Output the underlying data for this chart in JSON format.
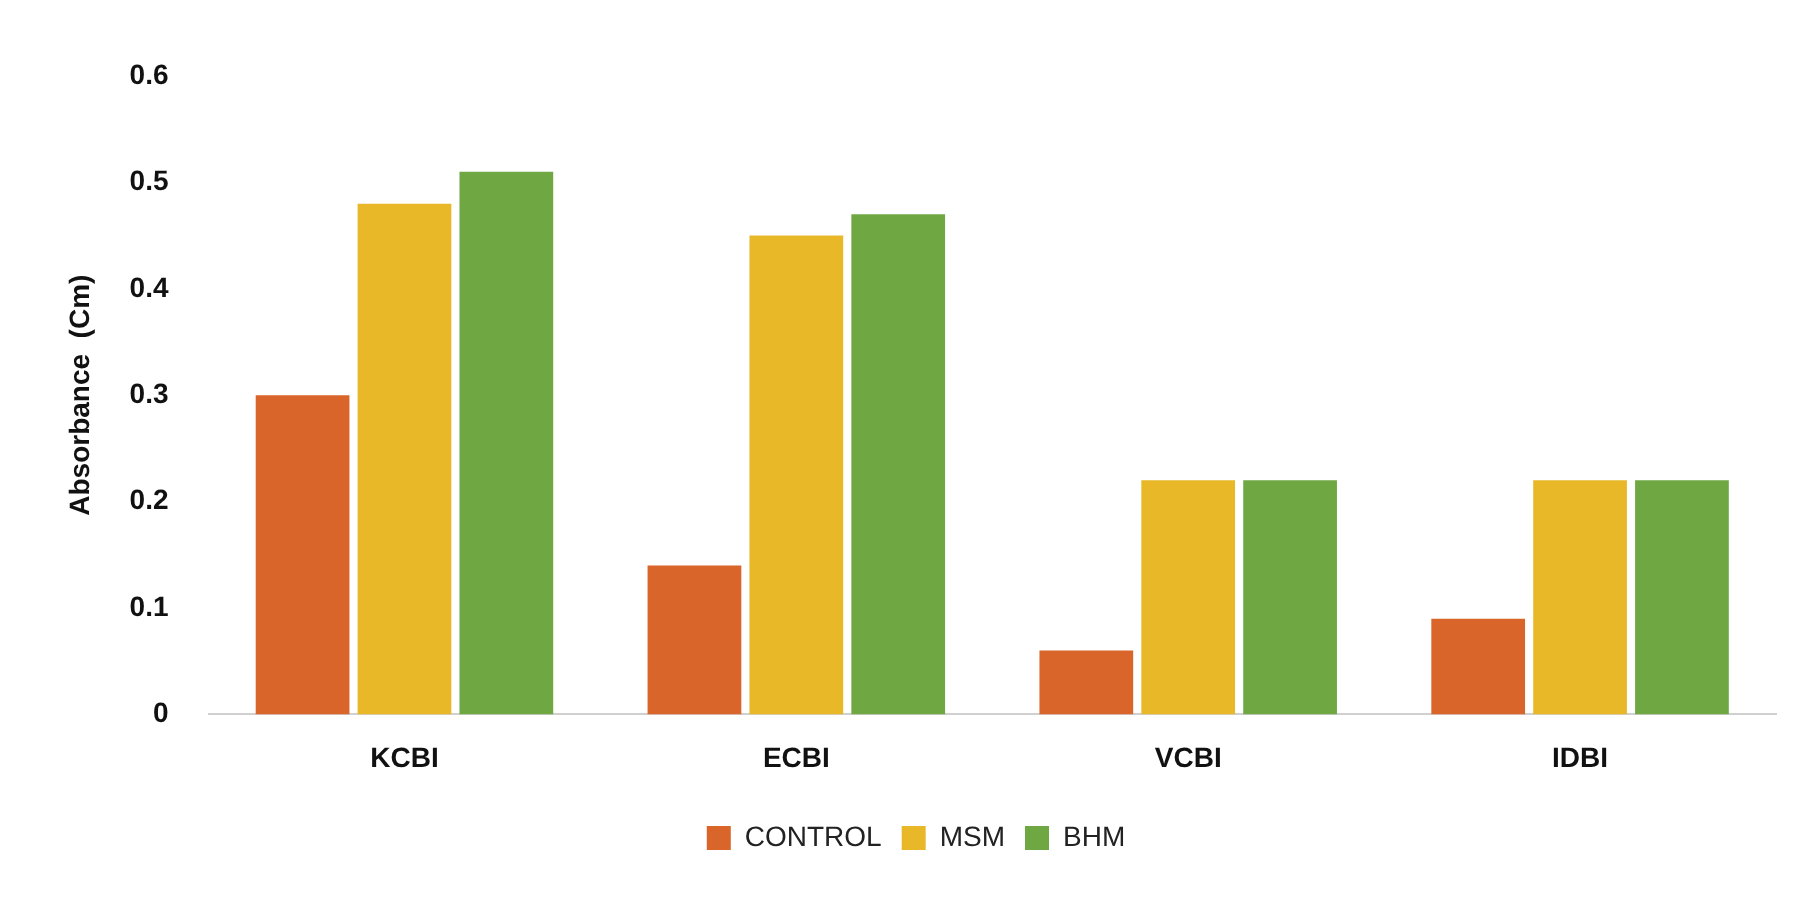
{
  "chart_data": {
    "type": "bar",
    "ylabel": "Absorbance  (Cm)",
    "categories": [
      "KCBI",
      "ECBI",
      "VCBI",
      "IDBI"
    ],
    "series": [
      {
        "name": "CONTROL",
        "color": "#d9652a",
        "values": [
          0.3,
          0.14,
          0.06,
          0.09
        ]
      },
      {
        "name": "MSM",
        "color": "#e8b828",
        "values": [
          0.48,
          0.45,
          0.22,
          0.22
        ]
      },
      {
        "name": "BHM",
        "color": "#6fa843",
        "values": [
          0.51,
          0.47,
          0.22,
          0.22
        ]
      }
    ],
    "ylim": [
      0,
      0.6
    ],
    "yticks": [
      0,
      0.1,
      0.2,
      0.3,
      0.4,
      0.5,
      0.6
    ],
    "grid": false,
    "legend": "bottom"
  }
}
